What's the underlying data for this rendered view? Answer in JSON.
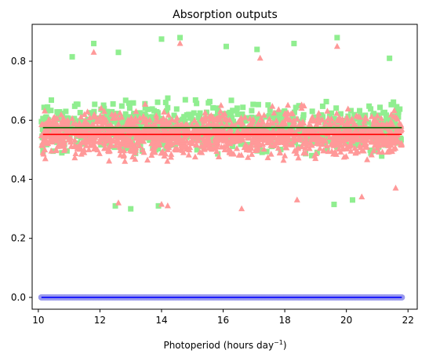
{
  "chart_data": {
    "type": "scatter",
    "title": "Absorption outputs",
    "xlabel": "Photoperiod (hours day",
    "xlabel_sup": "−1",
    "xlabel_close": ")",
    "ylabel": "",
    "xlim": [
      9.8,
      22.3
    ],
    "ylim": [
      -0.04,
      0.925
    ],
    "xticks": [
      10,
      12,
      14,
      16,
      18,
      20,
      22
    ],
    "yticks": [
      0.0,
      0.2,
      0.4,
      0.6,
      0.8
    ],
    "ytick_labels": [
      "0.0",
      "0.2",
      "0.4",
      "0.6",
      "0.8"
    ],
    "grid": false,
    "series": [
      {
        "marker": "square",
        "color": "#90ee90",
        "x_range": [
          10.1,
          21.8
        ],
        "y_mean": 0.575,
        "y_band": [
          0.31,
          0.88
        ],
        "points_outer": [
          [
            11.8,
            0.86
          ],
          [
            14.0,
            0.875
          ],
          [
            14.6,
            0.88
          ],
          [
            16.1,
            0.85
          ],
          [
            19.7,
            0.88
          ],
          [
            17.1,
            0.84
          ],
          [
            12.6,
            0.83
          ],
          [
            18.3,
            0.86
          ],
          [
            21.4,
            0.81
          ],
          [
            11.1,
            0.815
          ],
          [
            13.0,
            0.3
          ],
          [
            13.9,
            0.31
          ],
          [
            19.6,
            0.315
          ],
          [
            12.5,
            0.31
          ],
          [
            20.2,
            0.33
          ],
          [
            10.3,
            0.645
          ]
        ]
      },
      {
        "marker": "triangle",
        "color": "#ff9999",
        "x_range": [
          10.1,
          21.8
        ],
        "y_mean": 0.552,
        "y_band": [
          0.3,
          0.86
        ],
        "points_outer": [
          [
            11.8,
            0.83
          ],
          [
            14.6,
            0.86
          ],
          [
            19.7,
            0.85
          ],
          [
            17.2,
            0.81
          ],
          [
            12.6,
            0.32
          ],
          [
            14.0,
            0.315
          ],
          [
            14.2,
            0.31
          ],
          [
            16.6,
            0.3
          ],
          [
            18.4,
            0.33
          ],
          [
            20.5,
            0.34
          ],
          [
            21.6,
            0.37
          ]
        ]
      },
      {
        "marker": "circle",
        "color": "#9999ee",
        "x_range": [
          10.1,
          21.8
        ],
        "y_value": 0.0
      }
    ],
    "lines": [
      {
        "color": "#006400",
        "y": 0.575,
        "x": [
          10.15,
          21.8
        ]
      },
      {
        "color": "#ff0000",
        "y": 0.552,
        "x": [
          10.15,
          21.8
        ]
      },
      {
        "color": "#0000ff",
        "y": 0.0,
        "x": [
          10.1,
          21.8
        ]
      }
    ]
  }
}
